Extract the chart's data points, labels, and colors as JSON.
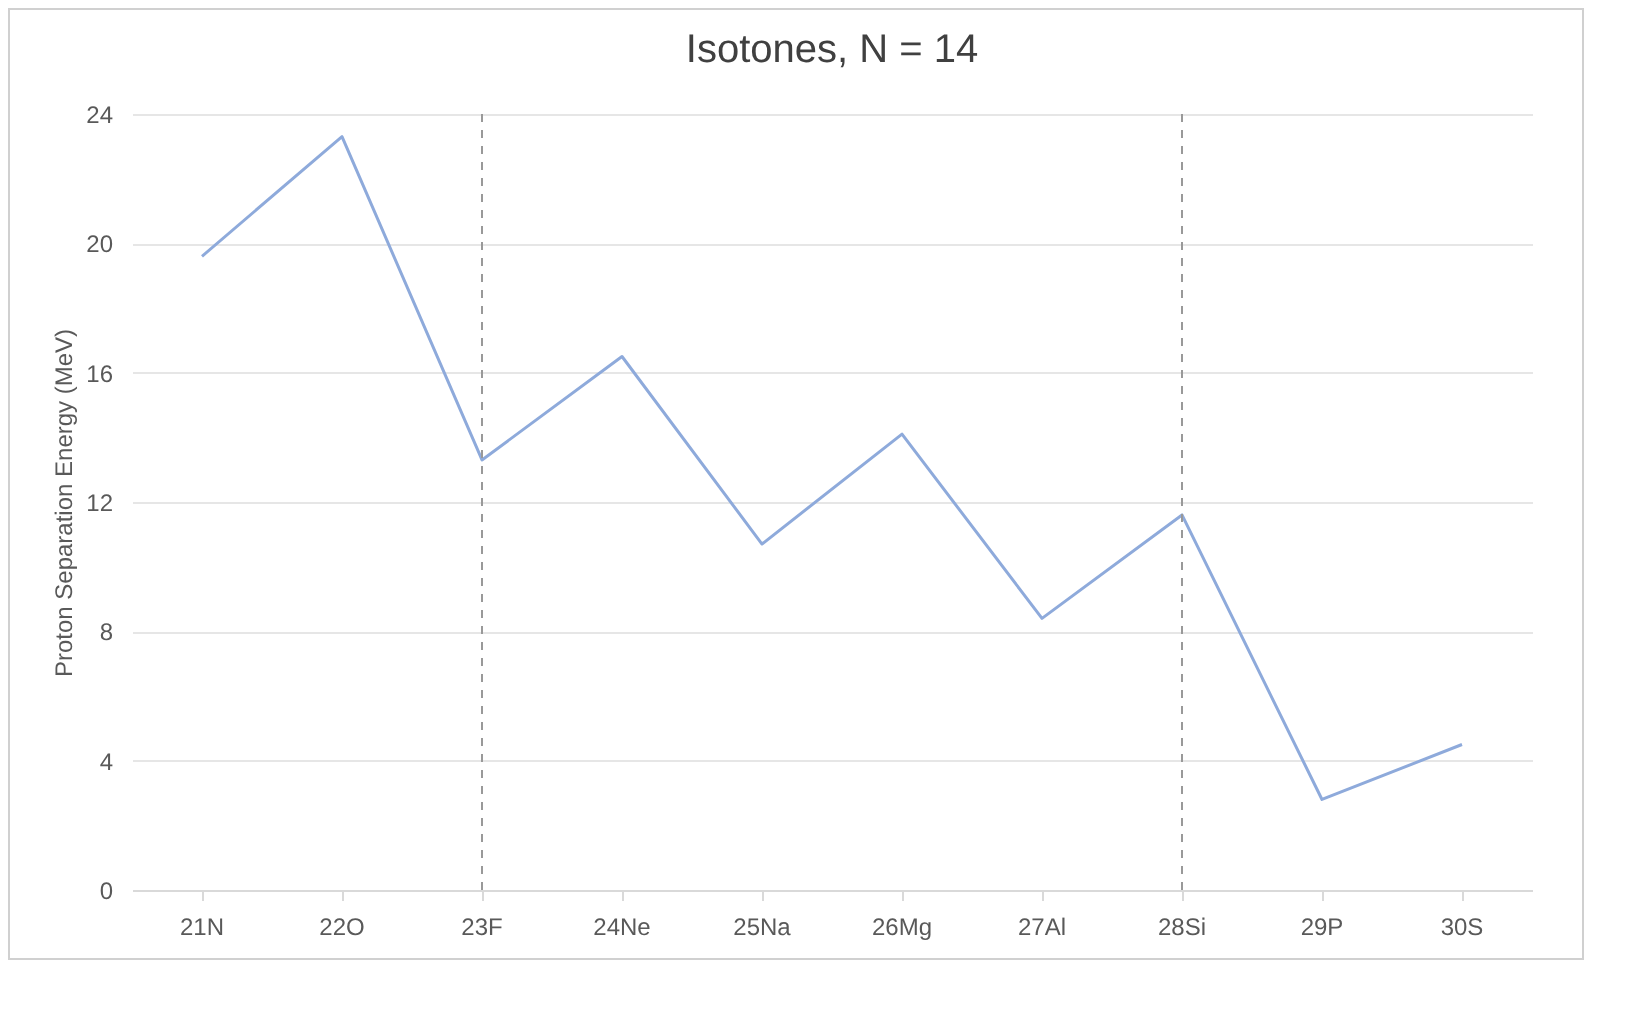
{
  "chart_data": {
    "type": "line",
    "title": "Isotones, N = 14",
    "ylabel": "Proton Separation Energy (MeV)",
    "categories": [
      "21N",
      "22O",
      "23F",
      "24Ne",
      "25Na",
      "26Mg",
      "27Al",
      "28Si",
      "29P",
      "30S"
    ],
    "series": [
      {
        "color": "#8eaadb",
        "values": [
          19.6,
          23.3,
          13.3,
          16.5,
          10.7,
          14.1,
          8.4,
          11.6,
          2.8,
          4.5
        ]
      }
    ],
    "ylim": [
      0,
      24
    ],
    "yticks": [
      0,
      4,
      8,
      12,
      16,
      20,
      24
    ],
    "grid": "y",
    "ref_lines": [
      {
        "axis": "x",
        "value": "23F",
        "color": "#999999",
        "line_style": "dashed"
      },
      {
        "axis": "x",
        "value": "28Si",
        "color": "#999999",
        "line_style": "dashed"
      }
    ]
  }
}
